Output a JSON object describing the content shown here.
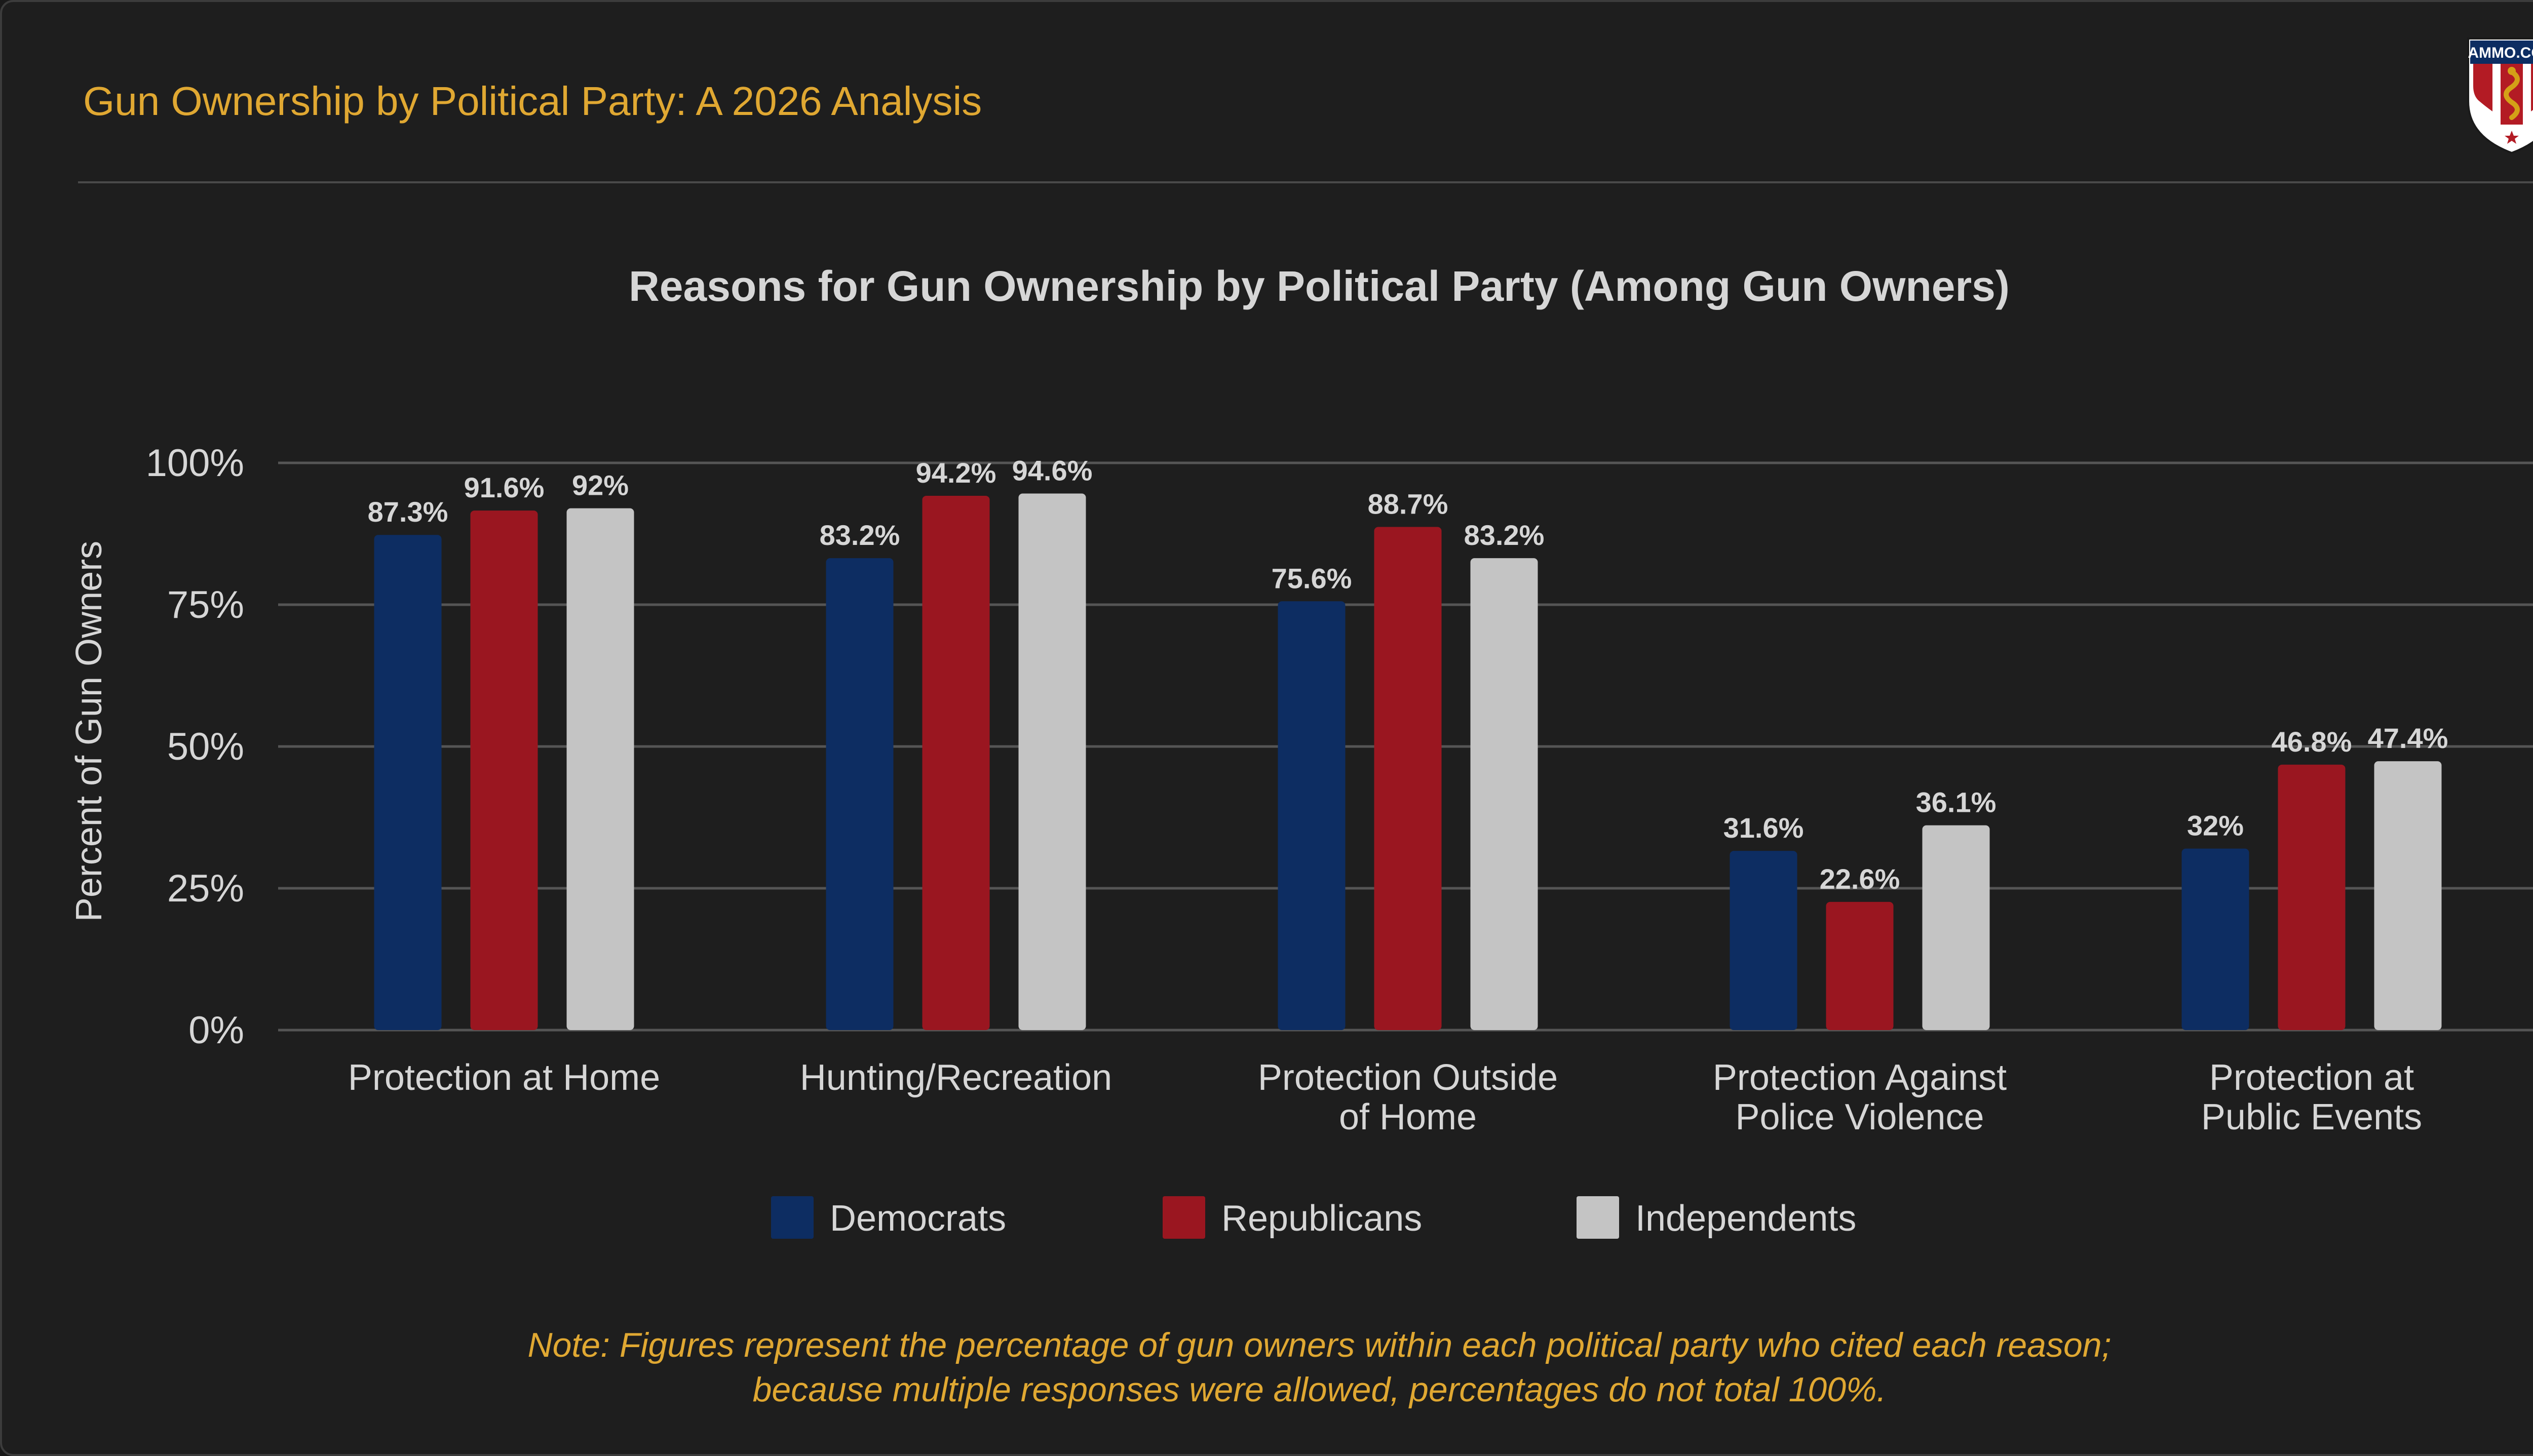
{
  "header": {
    "title": "Gun Ownership by Political Party: A 2026 Analysis",
    "logo_text": "AMMO.COM"
  },
  "colors": {
    "title": "#e0a832",
    "democrats": "#0d2d62",
    "republicans": "#9a1620",
    "independents": "#c4c4c4",
    "grid": "#555555",
    "text": "#d6d6d6"
  },
  "chart_data": {
    "type": "bar",
    "title": "Reasons for Gun Ownership by Political Party (Among Gun Owners)",
    "xlabel": "",
    "ylabel": "Percent of Gun Owners",
    "ylim": [
      0,
      100
    ],
    "yticks": [
      0,
      25,
      50,
      75,
      100
    ],
    "ytick_labels": [
      "0%",
      "25%",
      "50%",
      "75%",
      "100%"
    ],
    "grid": true,
    "legend_position": "bottom-center",
    "categories": [
      [
        "Protection at Home"
      ],
      [
        "Hunting/Recreation"
      ],
      [
        "Protection Outside",
        "of Home"
      ],
      [
        "Protection Against",
        "Police Violence"
      ],
      [
        "Protection at",
        "Public Events"
      ]
    ],
    "series": [
      {
        "name": "Democrats",
        "color": "#0d2d62",
        "values": [
          87.3,
          83.2,
          75.6,
          31.6,
          32
        ],
        "labels": [
          "87.3%",
          "83.2%",
          "75.6%",
          "31.6%",
          "32%"
        ]
      },
      {
        "name": "Republicans",
        "color": "#9a1620",
        "values": [
          91.6,
          94.2,
          88.7,
          22.6,
          46.8
        ],
        "labels": [
          "91.6%",
          "94.2%",
          "88.7%",
          "22.6%",
          "46.8%"
        ]
      },
      {
        "name": "Independents",
        "color": "#c4c4c4",
        "values": [
          92,
          94.6,
          83.2,
          36.1,
          47.4
        ],
        "labels": [
          "92%",
          "94.6%",
          "83.2%",
          "36.1%",
          "47.4%"
        ]
      }
    ]
  },
  "note": {
    "line1": "Note: Figures represent the percentage of gun owners within each political party who cited each reason;",
    "line2": "because multiple responses were allowed, percentages do not total 100%."
  }
}
